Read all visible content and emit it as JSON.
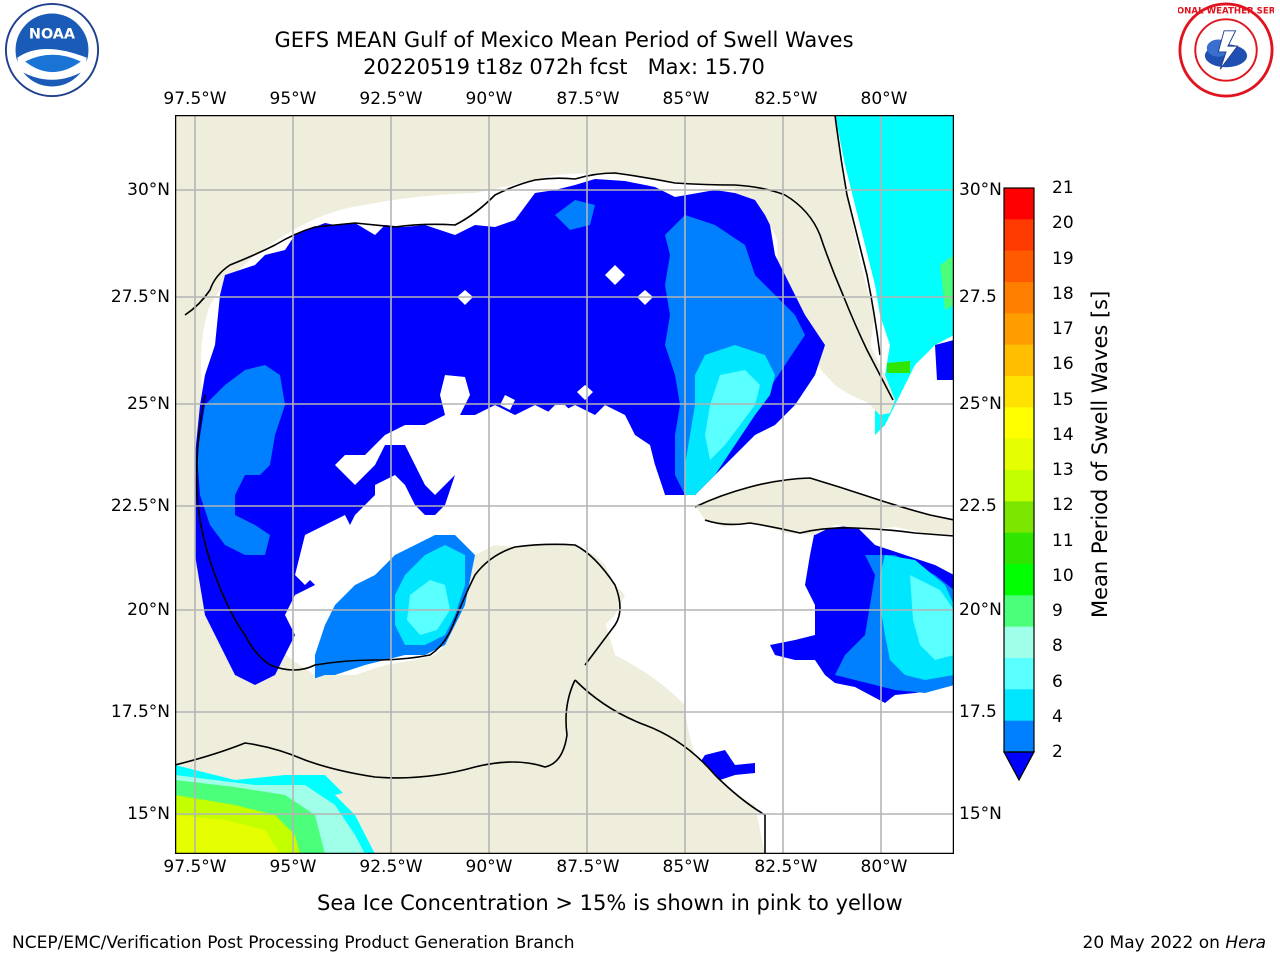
{
  "title": {
    "line1": "GEFS MEAN Gulf of Mexico Mean Period of Swell Waves",
    "line2": "20220519 t18z 072h fcst   Max: 15.70"
  },
  "map": {
    "lon_labels": [
      "97.5°W",
      "95°W",
      "92.5°W",
      "90°W",
      "87.5°W",
      "85°W",
      "82.5°W",
      "80°W"
    ],
    "lat_labels_left": [
      "30°N",
      "27.5°N",
      "25°N",
      "22.5°N",
      "20°N",
      "17.5°N",
      "15°N"
    ],
    "lat_labels_right": [
      "30°N",
      "27.5",
      "25°N",
      "22.5",
      "20°N",
      "17.5",
      "15°N"
    ],
    "colors": {
      "land": "#efeedd",
      "coast": "#000000",
      "grid": "#b4b4b4",
      "no_data": "#ffffff"
    }
  },
  "colorbar": {
    "title": "Mean Period of Swell Waves [s]",
    "labels": [
      "21",
      "20",
      "19",
      "18",
      "17",
      "16",
      "15",
      "14",
      "13",
      "12",
      "11",
      "10",
      "9",
      "8",
      "6",
      "4",
      "2"
    ],
    "colors": [
      "#ff0000",
      "#ff3a00",
      "#ff5a00",
      "#ff7e00",
      "#ff9c00",
      "#ffbf00",
      "#ffe200",
      "#ffff00",
      "#e6ff00",
      "#c4ff00",
      "#7de600",
      "#2fe600",
      "#00ff00",
      "#4cff7a",
      "#a0ffe8",
      "#5affff",
      "#00e6ff",
      "#0080ff"
    ],
    "extend_color": "#0000ff"
  },
  "note": "Sea Ice Concentration > 15% is shown in pink to yellow",
  "footer": {
    "left": "NCEP/EMC/Verification Post Processing Product Generation Branch",
    "right_prefix": "20 May 2022 on ",
    "right_host": "Hera"
  },
  "logos": {
    "noaa_text": "NOAA",
    "nws_text": "NATIONAL WEATHER SERVICE"
  }
}
